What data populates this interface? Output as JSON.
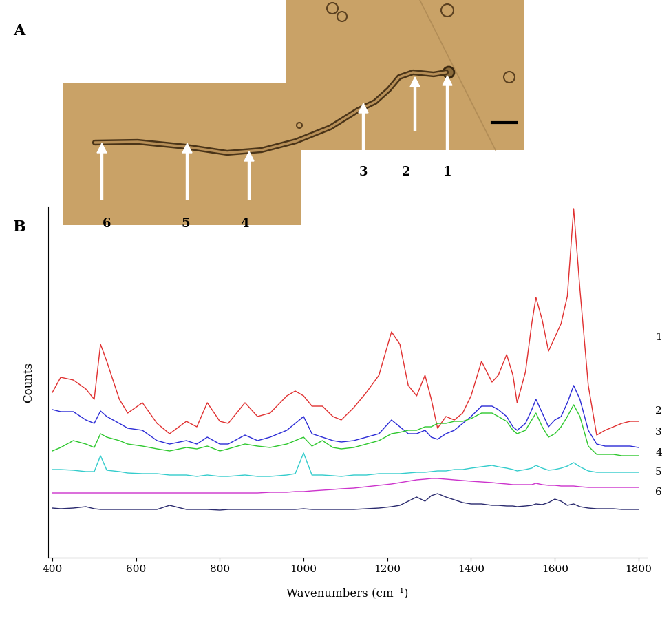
{
  "panel_a": {
    "label": "A",
    "markers": [
      "1",
      "2",
      "3",
      "4",
      "5",
      "6"
    ]
  },
  "chart_data": {
    "type": "line",
    "panel_label": "B",
    "x_label": "Wavenumbers (cm⁻¹)",
    "y_label": "Counts",
    "x": [
      400,
      420,
      450,
      480,
      500,
      515,
      530,
      560,
      580,
      615,
      650,
      680,
      720,
      745,
      770,
      800,
      820,
      860,
      890,
      920,
      960,
      980,
      1000,
      1020,
      1045,
      1070,
      1090,
      1120,
      1150,
      1180,
      1210,
      1230,
      1250,
      1270,
      1290,
      1305,
      1320,
      1340,
      1360,
      1380,
      1400,
      1425,
      1450,
      1465,
      1485,
      1500,
      1510,
      1530,
      1545,
      1555,
      1570,
      1585,
      1600,
      1615,
      1630,
      1645,
      1660,
      1680,
      1700,
      1720,
      1740,
      1760,
      1780,
      1800
    ],
    "series": [
      {
        "name": "1",
        "color": "#e03030",
        "values": [
          240,
          262,
          258,
          245,
          230,
          310,
          285,
          230,
          210,
          225,
          195,
          180,
          198,
          190,
          225,
          198,
          195,
          225,
          205,
          210,
          235,
          242,
          235,
          220,
          220,
          205,
          200,
          218,
          240,
          265,
          328,
          310,
          250,
          235,
          265,
          230,
          188,
          205,
          200,
          210,
          235,
          285,
          255,
          265,
          295,
          265,
          225,
          270,
          340,
          378,
          345,
          300,
          320,
          340,
          380,
          507,
          390,
          250,
          178,
          185,
          190,
          195,
          198,
          198
        ]
      },
      {
        "name": "2",
        "color": "#2b2bd6",
        "values": [
          215,
          212,
          212,
          200,
          195,
          213,
          205,
          195,
          188,
          185,
          170,
          165,
          170,
          165,
          175,
          165,
          165,
          178,
          170,
          175,
          185,
          195,
          205,
          180,
          175,
          170,
          168,
          170,
          175,
          180,
          200,
          190,
          180,
          180,
          185,
          175,
          172,
          180,
          185,
          195,
          205,
          220,
          220,
          215,
          205,
          190,
          185,
          195,
          215,
          230,
          210,
          190,
          200,
          205,
          225,
          250,
          230,
          185,
          165,
          162,
          162,
          162,
          162,
          160
        ]
      },
      {
        "name": "3",
        "color": "#2ec82e",
        "values": [
          155,
          160,
          170,
          165,
          160,
          180,
          175,
          170,
          165,
          162,
          158,
          155,
          160,
          158,
          162,
          155,
          158,
          165,
          162,
          160,
          165,
          170,
          175,
          162,
          170,
          160,
          158,
          160,
          165,
          170,
          180,
          182,
          185,
          185,
          190,
          190,
          195,
          195,
          198,
          198,
          202,
          210,
          210,
          205,
          198,
          185,
          180,
          185,
          200,
          210,
          190,
          175,
          180,
          190,
          205,
          222,
          205,
          162,
          150,
          150,
          150,
          148,
          148,
          148
        ]
      },
      {
        "name": "4",
        "color": "#33cccc",
        "values": [
          128,
          128,
          127,
          125,
          125,
          148,
          127,
          125,
          123,
          122,
          122,
          120,
          120,
          118,
          120,
          118,
          118,
          120,
          118,
          118,
          120,
          122,
          152,
          120,
          120,
          119,
          118,
          120,
          120,
          122,
          122,
          122,
          123,
          124,
          124,
          125,
          126,
          126,
          128,
          128,
          130,
          132,
          134,
          132,
          130,
          128,
          126,
          128,
          130,
          134,
          130,
          127,
          128,
          130,
          133,
          138,
          132,
          126,
          124,
          124,
          124,
          124,
          124,
          124
        ]
      },
      {
        "name": "5",
        "color": "#cc33cc",
        "values": [
          94,
          94,
          94,
          94,
          94,
          94,
          94,
          94,
          94,
          94,
          94,
          94,
          94,
          94,
          94,
          94,
          94,
          94,
          94,
          95,
          95,
          96,
          96,
          97,
          98,
          99,
          100,
          101,
          103,
          105,
          107,
          109,
          111,
          113,
          114,
          115,
          115,
          114,
          113,
          112,
          111,
          110,
          109,
          108,
          107,
          106,
          106,
          106,
          106,
          108,
          106,
          105,
          105,
          104,
          104,
          104,
          103,
          102,
          102,
          102,
          102,
          102,
          102,
          102
        ]
      },
      {
        "name": "6",
        "color": "#2a2a6e",
        "values": [
          72,
          71,
          72,
          74,
          71,
          70,
          70,
          70,
          70,
          70,
          70,
          76,
          70,
          70,
          70,
          69,
          70,
          70,
          70,
          70,
          70,
          70,
          71,
          70,
          70,
          70,
          70,
          70,
          71,
          72,
          74,
          76,
          82,
          88,
          82,
          90,
          93,
          88,
          84,
          80,
          78,
          78,
          76,
          76,
          75,
          75,
          74,
          75,
          76,
          78,
          77,
          80,
          85,
          82,
          76,
          78,
          74,
          72,
          71,
          71,
          71,
          70,
          70,
          70
        ]
      }
    ],
    "xlim": [
      390,
      1820
    ],
    "xticks": [
      400,
      600,
      800,
      1000,
      1200,
      1400,
      1600,
      1800
    ],
    "ylim": [
      0,
      510
    ],
    "yticks": [],
    "tick_labels": "x"
  }
}
